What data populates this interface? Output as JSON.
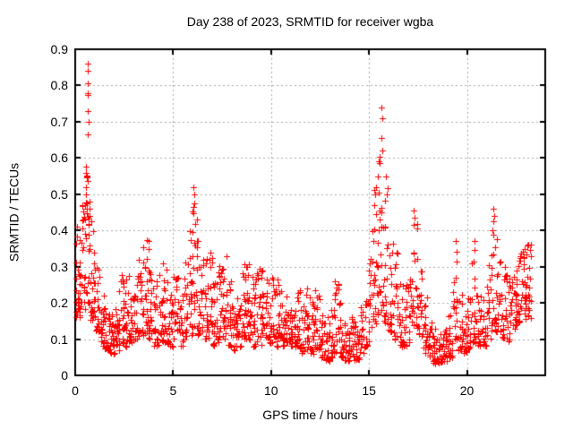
{
  "chart_data": {
    "type": "scatter",
    "title": "Day 238 of 2023, SRMTID for receiver wgba",
    "xlabel": "GPS time / hours",
    "ylabel": "SRMTID / TECUs",
    "xlim": [
      0,
      24
    ],
    "ylim": [
      0,
      0.9
    ],
    "xticks": [
      "0",
      "5",
      "10",
      "15",
      "20"
    ],
    "yticks": [
      "0",
      "0.1",
      "0.2",
      "0.3",
      "0.4",
      "0.5",
      "0.6",
      "0.7",
      "0.8",
      "0.9"
    ],
    "grid": true,
    "grid_color": "#a8a8a8",
    "border_color": "#000000",
    "marker": "plus",
    "marker_color": "#ff0000",
    "legend": "none",
    "seed": 238,
    "series_name": "SRMTID",
    "density_bins": [
      [
        0.0,
        0.25,
        28,
        0.16,
        0.42
      ],
      [
        0.25,
        0.5,
        24,
        0.18,
        0.5
      ],
      [
        0.5,
        0.75,
        26,
        0.2,
        0.6
      ],
      [
        0.75,
        1.0,
        24,
        0.15,
        0.45
      ],
      [
        1.0,
        1.25,
        22,
        0.12,
        0.3
      ],
      [
        1.25,
        1.5,
        22,
        0.08,
        0.22
      ],
      [
        1.5,
        1.75,
        20,
        0.07,
        0.18
      ],
      [
        1.75,
        2.0,
        22,
        0.06,
        0.17
      ],
      [
        2.0,
        2.25,
        22,
        0.07,
        0.2
      ],
      [
        2.25,
        2.5,
        20,
        0.09,
        0.28
      ],
      [
        2.5,
        2.75,
        18,
        0.08,
        0.3
      ],
      [
        2.75,
        3.0,
        18,
        0.09,
        0.26
      ],
      [
        3.0,
        3.25,
        18,
        0.1,
        0.3
      ],
      [
        3.25,
        3.5,
        20,
        0.11,
        0.38
      ],
      [
        3.5,
        3.75,
        20,
        0.11,
        0.41
      ],
      [
        3.75,
        4.0,
        18,
        0.1,
        0.3
      ],
      [
        4.0,
        4.25,
        18,
        0.08,
        0.26
      ],
      [
        4.25,
        4.5,
        18,
        0.08,
        0.31
      ],
      [
        4.5,
        4.75,
        18,
        0.09,
        0.3
      ],
      [
        4.75,
        5.0,
        18,
        0.08,
        0.26
      ],
      [
        5.0,
        5.25,
        18,
        0.09,
        0.28
      ],
      [
        5.25,
        5.5,
        18,
        0.08,
        0.26
      ],
      [
        5.5,
        5.75,
        18,
        0.1,
        0.32
      ],
      [
        5.75,
        6.0,
        20,
        0.11,
        0.42
      ],
      [
        6.0,
        6.25,
        20,
        0.13,
        0.46
      ],
      [
        6.25,
        6.5,
        18,
        0.11,
        0.38
      ],
      [
        6.5,
        6.75,
        18,
        0.1,
        0.33
      ],
      [
        6.75,
        7.0,
        18,
        0.1,
        0.35
      ],
      [
        7.0,
        7.25,
        18,
        0.08,
        0.26
      ],
      [
        7.25,
        7.5,
        18,
        0.09,
        0.33
      ],
      [
        7.5,
        7.75,
        20,
        0.1,
        0.35
      ],
      [
        7.75,
        8.0,
        18,
        0.08,
        0.28
      ],
      [
        8.0,
        8.25,
        18,
        0.07,
        0.22
      ],
      [
        8.25,
        8.5,
        18,
        0.08,
        0.26
      ],
      [
        8.5,
        8.75,
        20,
        0.1,
        0.31
      ],
      [
        8.75,
        9.0,
        20,
        0.1,
        0.31
      ],
      [
        9.0,
        9.25,
        18,
        0.08,
        0.28
      ],
      [
        9.25,
        9.5,
        18,
        0.09,
        0.3
      ],
      [
        9.5,
        9.75,
        18,
        0.08,
        0.29
      ],
      [
        9.75,
        10.0,
        18,
        0.09,
        0.27
      ],
      [
        10.0,
        10.25,
        18,
        0.09,
        0.3
      ],
      [
        10.25,
        10.5,
        18,
        0.08,
        0.27
      ],
      [
        10.5,
        10.75,
        18,
        0.08,
        0.24
      ],
      [
        10.75,
        11.0,
        18,
        0.09,
        0.23
      ],
      [
        11.0,
        11.25,
        18,
        0.08,
        0.21
      ],
      [
        11.25,
        11.5,
        18,
        0.08,
        0.24
      ],
      [
        11.5,
        11.75,
        18,
        0.06,
        0.21
      ],
      [
        11.75,
        12.0,
        18,
        0.07,
        0.24
      ],
      [
        12.0,
        12.25,
        18,
        0.06,
        0.21
      ],
      [
        12.25,
        12.5,
        18,
        0.07,
        0.24
      ],
      [
        12.5,
        12.75,
        18,
        0.05,
        0.19
      ],
      [
        12.75,
        13.0,
        18,
        0.04,
        0.17
      ],
      [
        13.0,
        13.25,
        18,
        0.05,
        0.19
      ],
      [
        13.25,
        13.5,
        18,
        0.06,
        0.27
      ],
      [
        13.5,
        13.75,
        18,
        0.05,
        0.21
      ],
      [
        13.75,
        14.0,
        18,
        0.04,
        0.15
      ],
      [
        14.0,
        14.25,
        18,
        0.05,
        0.17
      ],
      [
        14.25,
        14.5,
        16,
        0.04,
        0.15
      ],
      [
        14.5,
        14.75,
        16,
        0.06,
        0.19
      ],
      [
        14.75,
        15.0,
        16,
        0.08,
        0.24
      ],
      [
        15.0,
        15.25,
        18,
        0.1,
        0.4
      ],
      [
        15.25,
        15.5,
        20,
        0.14,
        0.55
      ],
      [
        15.5,
        15.75,
        18,
        0.18,
        0.62
      ],
      [
        15.75,
        16.0,
        18,
        0.14,
        0.52
      ],
      [
        16.0,
        16.25,
        18,
        0.12,
        0.4
      ],
      [
        16.25,
        16.5,
        18,
        0.1,
        0.34
      ],
      [
        16.5,
        16.75,
        16,
        0.08,
        0.28
      ],
      [
        16.75,
        17.0,
        16,
        0.08,
        0.25
      ],
      [
        17.0,
        17.25,
        16,
        0.09,
        0.3
      ],
      [
        17.25,
        17.5,
        18,
        0.13,
        0.42
      ],
      [
        17.5,
        17.75,
        16,
        0.1,
        0.34
      ],
      [
        17.75,
        18.0,
        16,
        0.06,
        0.22
      ],
      [
        18.0,
        18.25,
        16,
        0.05,
        0.17
      ],
      [
        18.25,
        18.5,
        18,
        0.03,
        0.14
      ],
      [
        18.5,
        18.75,
        18,
        0.03,
        0.12
      ],
      [
        18.75,
        19.0,
        18,
        0.04,
        0.14
      ],
      [
        19.0,
        19.25,
        16,
        0.05,
        0.17
      ],
      [
        19.25,
        19.5,
        16,
        0.07,
        0.3
      ],
      [
        19.5,
        19.75,
        16,
        0.07,
        0.24
      ],
      [
        19.75,
        20.0,
        16,
        0.06,
        0.2
      ],
      [
        20.0,
        20.25,
        16,
        0.07,
        0.24
      ],
      [
        20.25,
        20.5,
        16,
        0.09,
        0.31
      ],
      [
        20.5,
        20.75,
        16,
        0.08,
        0.24
      ],
      [
        20.75,
        21.0,
        16,
        0.08,
        0.22
      ],
      [
        21.0,
        21.25,
        16,
        0.1,
        0.34
      ],
      [
        21.25,
        21.5,
        18,
        0.12,
        0.42
      ],
      [
        21.5,
        21.75,
        18,
        0.12,
        0.38
      ],
      [
        21.75,
        22.0,
        16,
        0.1,
        0.3
      ],
      [
        22.0,
        22.25,
        16,
        0.09,
        0.28
      ],
      [
        22.25,
        22.5,
        18,
        0.12,
        0.3
      ],
      [
        22.5,
        22.75,
        20,
        0.14,
        0.33
      ],
      [
        22.75,
        23.0,
        22,
        0.17,
        0.36
      ],
      [
        23.0,
        23.3,
        22,
        0.15,
        0.37
      ]
    ],
    "spike_points": [
      [
        0.62,
        0.86
      ],
      [
        0.63,
        0.84
      ],
      [
        0.62,
        0.805
      ],
      [
        0.64,
        0.78
      ],
      [
        0.66,
        0.78
      ],
      [
        0.65,
        0.775
      ],
      [
        0.66,
        0.73
      ],
      [
        0.68,
        0.7
      ],
      [
        0.66,
        0.665
      ],
      [
        0.55,
        0.575
      ],
      [
        0.57,
        0.56
      ],
      [
        0.58,
        0.55
      ],
      [
        0.53,
        0.52
      ],
      [
        0.55,
        0.5
      ],
      [
        0.6,
        0.475
      ],
      [
        0.73,
        0.46
      ],
      [
        0.75,
        0.44
      ],
      [
        6.05,
        0.52
      ],
      [
        6.1,
        0.5
      ],
      [
        6.08,
        0.475
      ],
      [
        6.02,
        0.465
      ],
      [
        15.62,
        0.74
      ],
      [
        15.66,
        0.71
      ],
      [
        15.63,
        0.655
      ],
      [
        15.68,
        0.62
      ],
      [
        15.55,
        0.585
      ],
      [
        15.45,
        0.55
      ],
      [
        15.35,
        0.52
      ],
      [
        15.3,
        0.5
      ],
      [
        15.28,
        0.47
      ],
      [
        15.85,
        0.55
      ],
      [
        15.9,
        0.5
      ],
      [
        17.3,
        0.455
      ],
      [
        17.33,
        0.435
      ],
      [
        17.3,
        0.415
      ],
      [
        19.45,
        0.37
      ],
      [
        19.48,
        0.34
      ],
      [
        19.46,
        0.315
      ],
      [
        20.38,
        0.37
      ],
      [
        20.4,
        0.345
      ],
      [
        20.36,
        0.315
      ],
      [
        21.33,
        0.46
      ],
      [
        21.38,
        0.44
      ],
      [
        21.35,
        0.425
      ],
      [
        21.3,
        0.4
      ],
      [
        23.25,
        0.36
      ],
      [
        23.2,
        0.345
      ],
      [
        23.28,
        0.33
      ]
    ]
  }
}
